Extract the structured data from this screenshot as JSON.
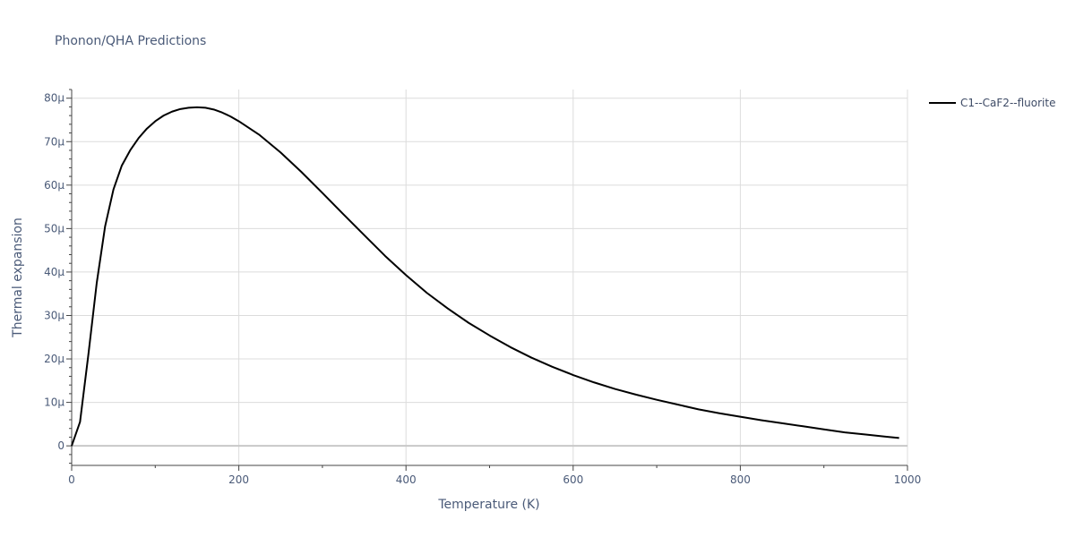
{
  "chart_data": {
    "type": "line",
    "title": "Phonon/QHA Predictions",
    "xlabel": "Temperature (K)",
    "ylabel": "Thermal expansion",
    "xlim": [
      0,
      1000
    ],
    "ylim": [
      -4.5e-06,
      8.2e-05
    ],
    "grid": true,
    "legend_position": "top-right",
    "x_ticks": [
      0,
      200,
      400,
      600,
      800,
      1000
    ],
    "x_tick_labels": [
      "0",
      "200",
      "400",
      "600",
      "800",
      "1000"
    ],
    "y_ticks": [
      0,
      1e-05,
      2e-05,
      3e-05,
      4e-05,
      5e-05,
      6e-05,
      7e-05,
      8e-05
    ],
    "y_tick_labels": [
      "0",
      "10μ",
      "20μ",
      "30μ",
      "40μ",
      "50μ",
      "60μ",
      "70μ",
      "80μ"
    ],
    "series": [
      {
        "name": "C1--CaF2--fluorite",
        "color": "#000000",
        "x": [
          0,
          10,
          20,
          30,
          40,
          50,
          60,
          70,
          80,
          90,
          100,
          110,
          120,
          130,
          140,
          150,
          160,
          170,
          180,
          190,
          200,
          225,
          250,
          275,
          300,
          325,
          350,
          375,
          400,
          425,
          450,
          475,
          500,
          525,
          550,
          575,
          600,
          625,
          650,
          675,
          700,
          725,
          750,
          775,
          800,
          825,
          850,
          875,
          900,
          925,
          950,
          975,
          990
        ],
        "y": [
          0,
          5.5e-06,
          2.1e-05,
          3.75e-05,
          5.05e-05,
          5.9e-05,
          6.45e-05,
          6.8e-05,
          7.08e-05,
          7.3e-05,
          7.47e-05,
          7.6e-05,
          7.69e-05,
          7.75e-05,
          7.78e-05,
          7.79e-05,
          7.78e-05,
          7.74e-05,
          7.67e-05,
          7.58e-05,
          7.47e-05,
          7.15e-05,
          6.75e-05,
          6.3e-05,
          5.82e-05,
          5.33e-05,
          4.85e-05,
          4.37e-05,
          3.93e-05,
          3.52e-05,
          3.16e-05,
          2.83e-05,
          2.54e-05,
          2.27e-05,
          2.03e-05,
          1.82e-05,
          1.63e-05,
          1.46e-05,
          1.31e-05,
          1.18e-05,
          1.06e-05,
          9.5e-06,
          8.4e-06,
          7.5e-06,
          6.7e-06,
          5.9e-06,
          5.2e-06,
          4.5e-06,
          3.8e-06,
          3.1e-06,
          2.6e-06,
          2.1e-06,
          1.8e-06
        ]
      }
    ]
  }
}
